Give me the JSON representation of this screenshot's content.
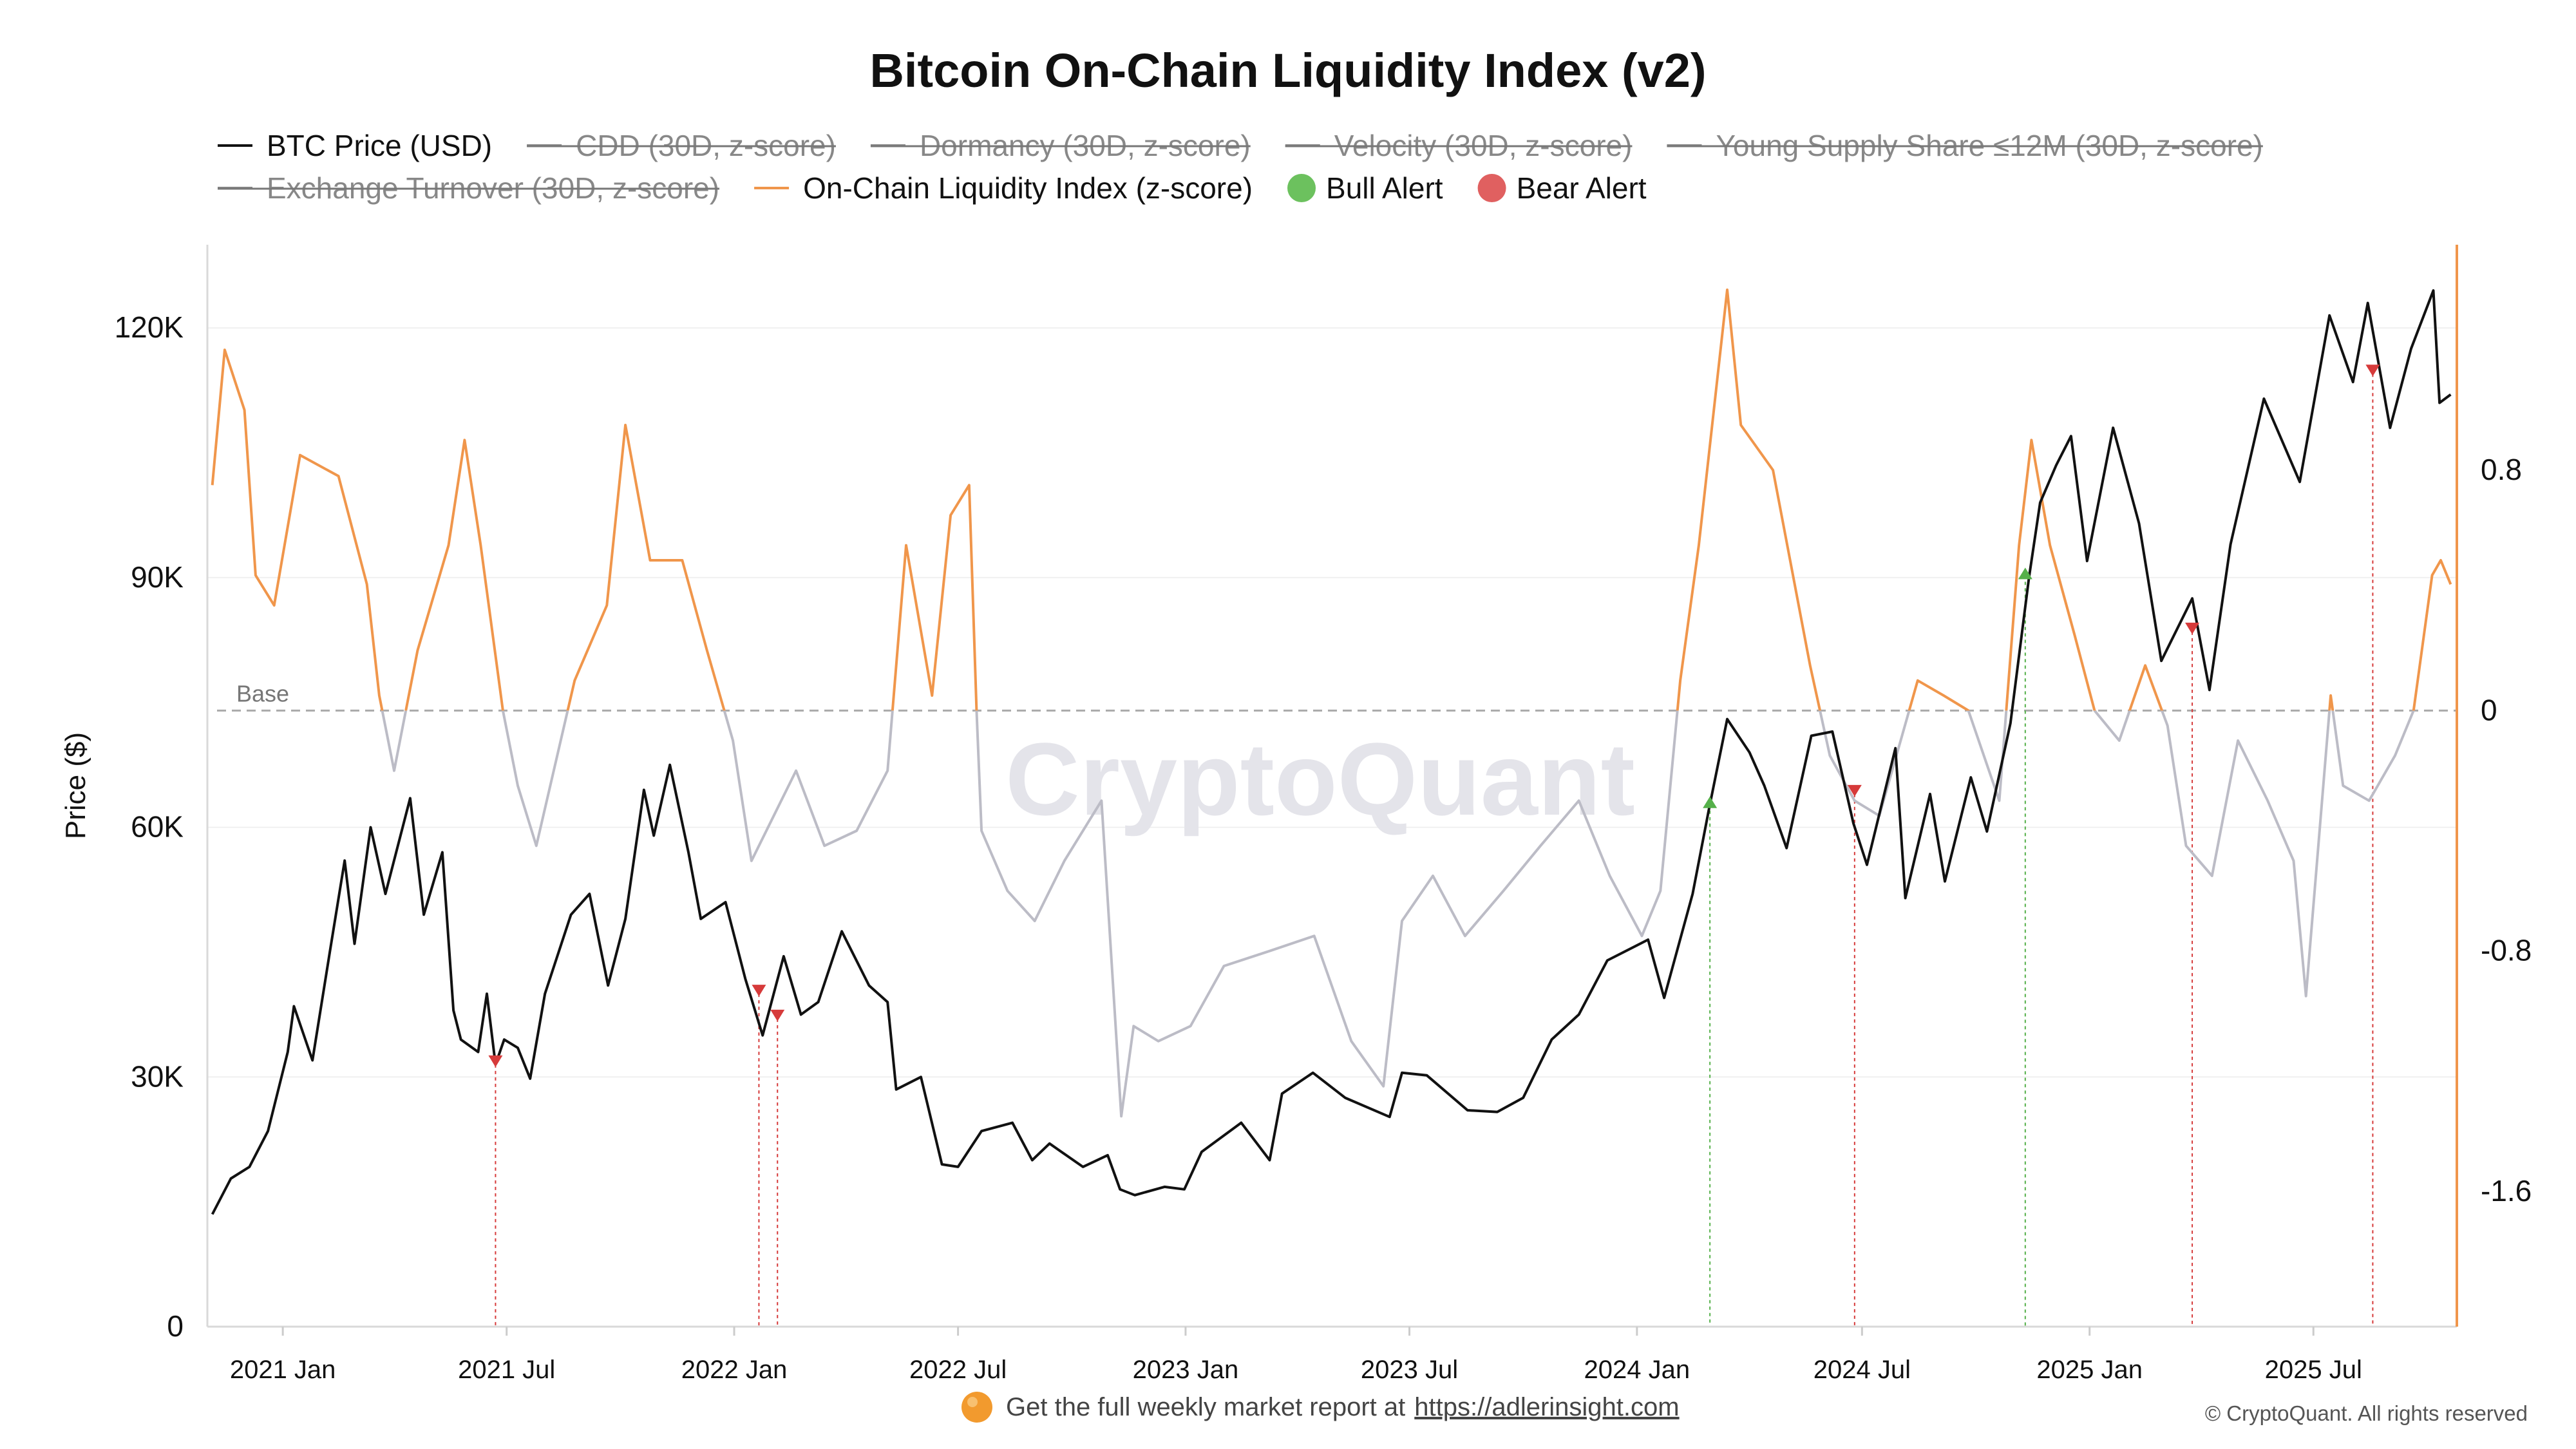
{
  "chart_data": {
    "type": "line",
    "title": "Bitcoin On-Chain Liquidity Index (v2)",
    "ylabel": "Price ($)",
    "ylim": [
      0,
      130000
    ],
    "y2lim": [
      -2.05,
      1.55
    ],
    "xlim": [
      "2020-11-01",
      "2025-10-25"
    ],
    "y_ticks": [
      0,
      30000,
      60000,
      90000,
      120000
    ],
    "y_tick_labels": [
      "0",
      "30K",
      "60K",
      "90K",
      "120K"
    ],
    "y2_ticks": [
      -1.6,
      -0.8,
      0,
      0.8
    ],
    "y2_tick_labels": [
      "-1.6",
      "-0.8",
      "0",
      "0.8"
    ],
    "x_ticks": [
      "2021-01-01",
      "2021-07-01",
      "2022-01-01",
      "2022-07-01",
      "2023-01-01",
      "2023-07-01",
      "2024-01-01",
      "2024-07-01",
      "2025-01-01",
      "2025-07-01"
    ],
    "x_tick_labels": [
      "2021 Jan",
      "2021 Jul",
      "2022 Jan",
      "2022 Jul",
      "2023 Jan",
      "2023 Jul",
      "2024 Jan",
      "2024 Jul",
      "2025 Jan",
      "2025 Jul"
    ],
    "baseline": {
      "value": 0,
      "label": "Base"
    },
    "legend_position": "top",
    "legend": [
      {
        "name": "BTC Price (USD)",
        "color": "#111111",
        "marker": "line",
        "hidden": false
      },
      {
        "name": "CDD (30D, z-score)",
        "color": "#888888",
        "marker": "line",
        "hidden": true
      },
      {
        "name": "Dormancy (30D, z-score)",
        "color": "#888888",
        "marker": "line",
        "hidden": true
      },
      {
        "name": "Velocity (30D, z-score)",
        "color": "#888888",
        "marker": "line",
        "hidden": true
      },
      {
        "name": "Young Supply Share ≤12M (30D, z-score)",
        "color": "#888888",
        "marker": "line",
        "hidden": true
      },
      {
        "name": "Exchange Turnover (30D, z-score)",
        "color": "#888888",
        "marker": "line",
        "hidden": true
      },
      {
        "name": "On-Chain Liquidity Index (z-score)",
        "color": "#f0964b",
        "marker": "line",
        "hidden": false
      },
      {
        "name": "Bull Alert",
        "color": "#6cc15e",
        "marker": "circle",
        "hidden": false
      },
      {
        "name": "Bear Alert",
        "color": "#e06060",
        "marker": "circle",
        "hidden": false
      }
    ],
    "series": [
      {
        "name": "BTC Price (USD)",
        "axis": "left",
        "color": "#111111",
        "points": [
          [
            "2020-11-05",
            13500
          ],
          [
            "2020-11-20",
            17800
          ],
          [
            "2020-12-05",
            19200
          ],
          [
            "2020-12-20",
            23500
          ],
          [
            "2021-01-05",
            33000
          ],
          [
            "2021-01-10",
            38500
          ],
          [
            "2021-01-25",
            32000
          ],
          [
            "2021-02-08",
            45000
          ],
          [
            "2021-02-20",
            56000
          ],
          [
            "2021-02-28",
            46000
          ],
          [
            "2021-03-13",
            60000
          ],
          [
            "2021-03-25",
            52000
          ],
          [
            "2021-04-14",
            63500
          ],
          [
            "2021-04-25",
            49500
          ],
          [
            "2021-05-10",
            57000
          ],
          [
            "2021-05-19",
            38000
          ],
          [
            "2021-05-25",
            34500
          ],
          [
            "2021-06-08",
            33000
          ],
          [
            "2021-06-15",
            40000
          ],
          [
            "2021-06-22",
            31500
          ],
          [
            "2021-06-29",
            34500
          ],
          [
            "2021-07-10",
            33500
          ],
          [
            "2021-07-20",
            29800
          ],
          [
            "2021-08-01",
            40000
          ],
          [
            "2021-08-22",
            49500
          ],
          [
            "2021-09-06",
            52000
          ],
          [
            "2021-09-21",
            41000
          ],
          [
            "2021-10-05",
            49000
          ],
          [
            "2021-10-20",
            64500
          ],
          [
            "2021-10-28",
            59000
          ],
          [
            "2021-11-10",
            67500
          ],
          [
            "2021-11-25",
            57000
          ],
          [
            "2021-12-05",
            49000
          ],
          [
            "2021-12-25",
            51000
          ],
          [
            "2022-01-10",
            41800
          ],
          [
            "2022-01-24",
            35000
          ],
          [
            "2022-02-10",
            44500
          ],
          [
            "2022-02-24",
            37500
          ],
          [
            "2022-03-10",
            39000
          ],
          [
            "2022-03-29",
            47500
          ],
          [
            "2022-04-20",
            41000
          ],
          [
            "2022-05-05",
            39000
          ],
          [
            "2022-05-12",
            28500
          ],
          [
            "2022-06-01",
            30000
          ],
          [
            "2022-06-18",
            19500
          ],
          [
            "2022-07-01",
            19200
          ],
          [
            "2022-07-20",
            23500
          ],
          [
            "2022-08-14",
            24500
          ],
          [
            "2022-08-30",
            20000
          ],
          [
            "2022-09-13",
            22000
          ],
          [
            "2022-10-10",
            19200
          ],
          [
            "2022-10-30",
            20600
          ],
          [
            "2022-11-09",
            16500
          ],
          [
            "2022-11-21",
            15800
          ],
          [
            "2022-12-15",
            16800
          ],
          [
            "2022-12-31",
            16500
          ],
          [
            "2023-01-14",
            21000
          ],
          [
            "2023-02-15",
            24500
          ],
          [
            "2023-03-10",
            20000
          ],
          [
            "2023-03-20",
            28000
          ],
          [
            "2023-04-14",
            30500
          ],
          [
            "2023-05-10",
            27500
          ],
          [
            "2023-06-15",
            25200
          ],
          [
            "2023-06-25",
            30500
          ],
          [
            "2023-07-15",
            30200
          ],
          [
            "2023-08-17",
            26000
          ],
          [
            "2023-09-10",
            25800
          ],
          [
            "2023-10-01",
            27500
          ],
          [
            "2023-10-24",
            34500
          ],
          [
            "2023-11-15",
            37500
          ],
          [
            "2023-12-08",
            44000
          ],
          [
            "2024-01-10",
            46500
          ],
          [
            "2024-01-23",
            39500
          ],
          [
            "2024-02-15",
            52000
          ],
          [
            "2024-02-28",
            62000
          ],
          [
            "2024-03-14",
            73000
          ],
          [
            "2024-04-01",
            69000
          ],
          [
            "2024-04-13",
            65000
          ],
          [
            "2024-05-01",
            57500
          ],
          [
            "2024-05-21",
            71000
          ],
          [
            "2024-06-07",
            71500
          ],
          [
            "2024-06-24",
            60500
          ],
          [
            "2024-07-05",
            55500
          ],
          [
            "2024-07-28",
            69500
          ],
          [
            "2024-08-05",
            51500
          ],
          [
            "2024-08-25",
            64000
          ],
          [
            "2024-09-06",
            53500
          ],
          [
            "2024-09-27",
            66000
          ],
          [
            "2024-10-10",
            59500
          ],
          [
            "2024-10-29",
            72500
          ],
          [
            "2024-11-13",
            90000
          ],
          [
            "2024-11-22",
            99000
          ],
          [
            "2024-12-05",
            103500
          ],
          [
            "2024-12-17",
            107000
          ],
          [
            "2024-12-30",
            92000
          ],
          [
            "2025-01-20",
            108000
          ],
          [
            "2025-02-10",
            96500
          ],
          [
            "2025-02-28",
            80000
          ],
          [
            "2025-03-25",
            87500
          ],
          [
            "2025-04-08",
            76500
          ],
          [
            "2025-04-25",
            94000
          ],
          [
            "2025-05-22",
            111500
          ],
          [
            "2025-06-20",
            101500
          ],
          [
            "2025-07-14",
            121500
          ],
          [
            "2025-08-02",
            113500
          ],
          [
            "2025-08-14",
            123000
          ],
          [
            "2025-09-01",
            108000
          ],
          [
            "2025-09-18",
            117500
          ],
          [
            "2025-10-06",
            124500
          ],
          [
            "2025-10-11",
            111000
          ],
          [
            "2025-10-20",
            112000
          ]
        ]
      },
      {
        "name": "On-Chain Liquidity Index (z-score)",
        "axis": "right",
        "color": "#f0964b",
        "below_zero_color": "#bcbcc6",
        "points": [
          [
            "2020-11-05",
            0.75
          ],
          [
            "2020-11-15",
            1.2
          ],
          [
            "2020-12-01",
            1.0
          ],
          [
            "2020-12-10",
            0.45
          ],
          [
            "2020-12-25",
            0.35
          ],
          [
            "2021-01-15",
            0.85
          ],
          [
            "2021-02-15",
            0.78
          ],
          [
            "2021-03-10",
            0.42
          ],
          [
            "2021-03-20",
            0.05
          ],
          [
            "2021-04-01",
            -0.2
          ],
          [
            "2021-04-20",
            0.2
          ],
          [
            "2021-05-15",
            0.55
          ],
          [
            "2021-05-28",
            0.9
          ],
          [
            "2021-06-10",
            0.55
          ],
          [
            "2021-06-28",
            0.0
          ],
          [
            "2021-07-10",
            -0.25
          ],
          [
            "2021-07-25",
            -0.45
          ],
          [
            "2021-08-25",
            0.1
          ],
          [
            "2021-09-20",
            0.35
          ],
          [
            "2021-10-05",
            0.95
          ],
          [
            "2021-10-25",
            0.5
          ],
          [
            "2021-11-20",
            0.5
          ],
          [
            "2021-12-10",
            0.2
          ],
          [
            "2021-12-31",
            -0.1
          ],
          [
            "2022-01-15",
            -0.5
          ],
          [
            "2022-02-20",
            -0.2
          ],
          [
            "2022-03-15",
            -0.45
          ],
          [
            "2022-04-10",
            -0.4
          ],
          [
            "2022-05-05",
            -0.2
          ],
          [
            "2022-05-20",
            0.55
          ],
          [
            "2022-06-10",
            0.05
          ],
          [
            "2022-06-25",
            0.65
          ],
          [
            "2022-07-10",
            0.75
          ],
          [
            "2022-07-16",
            0.0
          ],
          [
            "2022-07-20",
            -0.4
          ],
          [
            "2022-08-10",
            -0.6
          ],
          [
            "2022-09-01",
            -0.7
          ],
          [
            "2022-09-25",
            -0.5
          ],
          [
            "2022-10-25",
            -0.3
          ],
          [
            "2022-11-10",
            -1.35
          ],
          [
            "2022-11-20",
            -1.05
          ],
          [
            "2022-12-10",
            -1.1
          ],
          [
            "2023-01-05",
            -1.05
          ],
          [
            "2023-02-01",
            -0.85
          ],
          [
            "2023-03-10",
            -0.8
          ],
          [
            "2023-04-15",
            -0.75
          ],
          [
            "2023-05-15",
            -1.1
          ],
          [
            "2023-06-10",
            -1.25
          ],
          [
            "2023-06-25",
            -0.7
          ],
          [
            "2023-07-20",
            -0.55
          ],
          [
            "2023-08-15",
            -0.75
          ],
          [
            "2023-09-15",
            -0.6
          ],
          [
            "2023-10-15",
            -0.45
          ],
          [
            "2023-11-15",
            -0.3
          ],
          [
            "2023-12-10",
            -0.55
          ],
          [
            "2024-01-05",
            -0.75
          ],
          [
            "2024-01-20",
            -0.6
          ],
          [
            "2024-02-05",
            0.1
          ],
          [
            "2024-02-20",
            0.55
          ],
          [
            "2024-03-14",
            1.4
          ],
          [
            "2024-03-25",
            0.95
          ],
          [
            "2024-04-20",
            0.8
          ],
          [
            "2024-05-20",
            0.15
          ],
          [
            "2024-06-05",
            -0.15
          ],
          [
            "2024-06-25",
            -0.3
          ],
          [
            "2024-07-15",
            -0.35
          ],
          [
            "2024-08-15",
            0.1
          ],
          [
            "2024-09-05",
            0.05
          ],
          [
            "2024-09-25",
            0.0
          ],
          [
            "2024-10-20",
            -0.3
          ],
          [
            "2024-11-05",
            0.55
          ],
          [
            "2024-11-15",
            0.9
          ],
          [
            "2024-11-30",
            0.55
          ],
          [
            "2024-12-20",
            0.25
          ],
          [
            "2025-01-05",
            0.0
          ],
          [
            "2025-01-25",
            -0.1
          ],
          [
            "2025-02-15",
            0.15
          ],
          [
            "2025-03-05",
            -0.05
          ],
          [
            "2025-03-20",
            -0.45
          ],
          [
            "2025-04-10",
            -0.55
          ],
          [
            "2025-05-01",
            -0.1
          ],
          [
            "2025-05-25",
            -0.3
          ],
          [
            "2025-06-15",
            -0.5
          ],
          [
            "2025-06-25",
            -0.95
          ],
          [
            "2025-07-15",
            0.05
          ],
          [
            "2025-07-25",
            -0.25
          ],
          [
            "2025-08-15",
            -0.3
          ],
          [
            "2025-09-05",
            -0.15
          ],
          [
            "2025-09-20",
            0.0
          ],
          [
            "2025-10-05",
            0.45
          ],
          [
            "2025-10-12",
            0.5
          ],
          [
            "2025-10-20",
            0.42
          ]
        ]
      }
    ],
    "alerts": [
      {
        "type": "Bear Alert",
        "date": "2021-06-22",
        "price": 31500
      },
      {
        "type": "Bear Alert",
        "date": "2022-01-21",
        "price": 40000
      },
      {
        "type": "Bear Alert",
        "date": "2022-02-05",
        "price": 37000
      },
      {
        "type": "Bull Alert",
        "date": "2024-02-29",
        "price": 62000
      },
      {
        "type": "Bear Alert",
        "date": "2024-06-25",
        "price": 64000
      },
      {
        "type": "Bull Alert",
        "date": "2024-11-10",
        "price": 89500
      },
      {
        "type": "Bear Alert",
        "date": "2025-03-25",
        "price": 83500
      },
      {
        "type": "Bear Alert",
        "date": "2025-08-18",
        "price": 114500
      }
    ]
  },
  "watermark": "CryptoQuant",
  "footer": {
    "promo_text": "Get the full weekly market report at",
    "promo_link": "https://adlerinsight.com",
    "copyright": "© CryptoQuant. All rights reserved"
  }
}
